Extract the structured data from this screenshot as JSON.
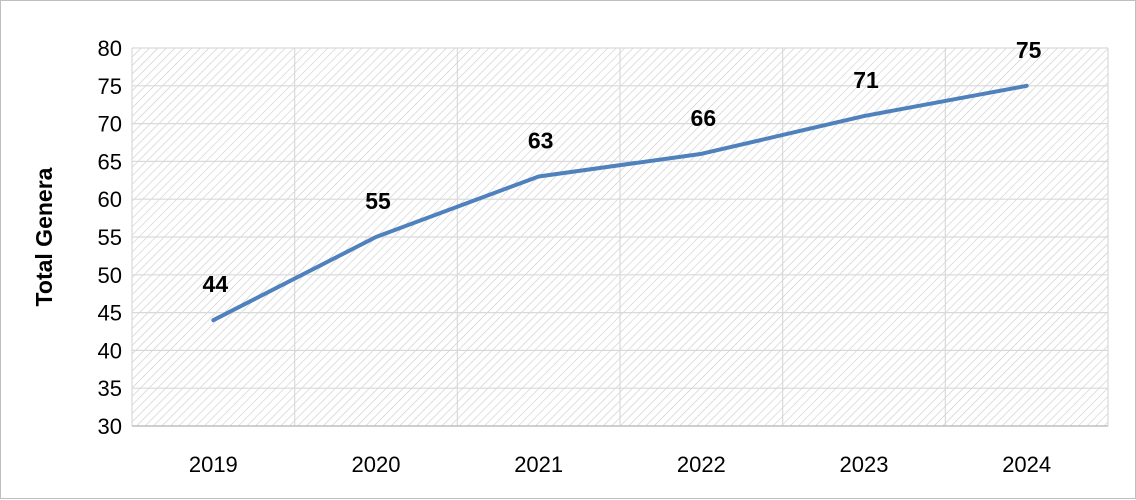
{
  "chart_data": {
    "type": "line",
    "title": "",
    "xlabel": "",
    "ylabel": "Total Genera",
    "ylim": [
      30,
      80
    ],
    "yticks": [
      30,
      35,
      40,
      45,
      50,
      55,
      60,
      65,
      70,
      75,
      80
    ],
    "categories": [
      "2019",
      "2020",
      "2021",
      "2022",
      "2023",
      "2024"
    ],
    "series": [
      {
        "values": [
          44,
          55,
          63,
          66,
          71,
          75
        ]
      }
    ],
    "data_labels": true,
    "grid": true,
    "legend": "none",
    "colors": {
      "line": "#4f81bd",
      "grid": "#d9d9d9",
      "hatch": "#c6c6c6"
    }
  }
}
